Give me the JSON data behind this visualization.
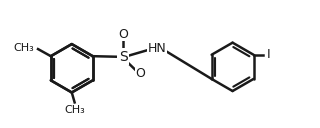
{
  "bg_color": "#ffffff",
  "line_color": "#1a1a1a",
  "line_width": 1.8,
  "font_size": 9,
  "font_family": "DejaVu Sans",
  "labels": {
    "O_top": "O",
    "O_bottom": "O",
    "S": "S",
    "NH": "H\nN",
    "CH3_topleft": "CH₃",
    "CH3_bottomright_left": "CH₃",
    "I": "I"
  }
}
